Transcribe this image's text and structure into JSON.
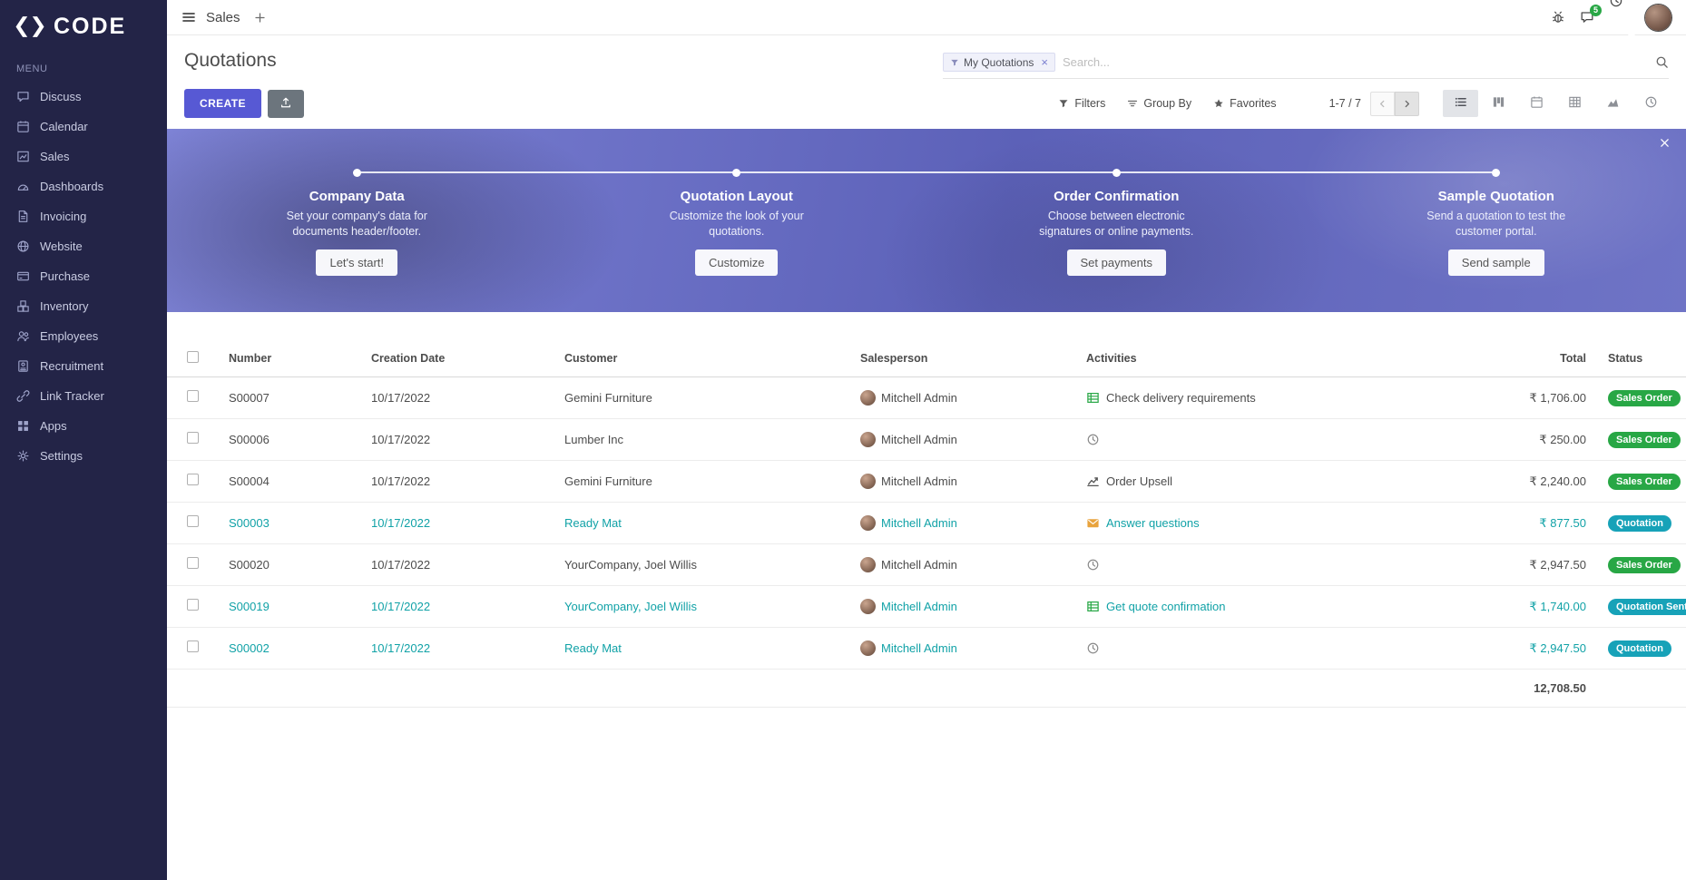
{
  "brand": {
    "name": "CODE"
  },
  "colors": {
    "sidebar_bg": "#232447",
    "accent": "#5759d4",
    "teal_text": "#11a2a7",
    "badge_green": "#28a745",
    "badge_teal": "#17a2b8",
    "banner_purple_from": "#7e83d6",
    "banner_purple_to": "#5c61b8"
  },
  "topbar": {
    "app_label": "Sales",
    "messages_badge": "5"
  },
  "sidebar": {
    "menu_label": "MENU",
    "items": [
      {
        "label": "Discuss",
        "icon": "discuss"
      },
      {
        "label": "Calendar",
        "icon": "calendar"
      },
      {
        "label": "Sales",
        "icon": "sales"
      },
      {
        "label": "Dashboards",
        "icon": "dashboards"
      },
      {
        "label": "Invoicing",
        "icon": "invoicing"
      },
      {
        "label": "Website",
        "icon": "website"
      },
      {
        "label": "Purchase",
        "icon": "purchase"
      },
      {
        "label": "Inventory",
        "icon": "inventory"
      },
      {
        "label": "Employees",
        "icon": "employees"
      },
      {
        "label": "Recruitment",
        "icon": "recruitment"
      },
      {
        "label": "Link Tracker",
        "icon": "link-tracker"
      },
      {
        "label": "Apps",
        "icon": "apps"
      },
      {
        "label": "Settings",
        "icon": "settings"
      }
    ]
  },
  "control": {
    "title": "Quotations",
    "search": {
      "facet_label": "My Quotations",
      "remove_label": "×",
      "placeholder": "Search..."
    },
    "create_label": "CREATE",
    "filters_label": "Filters",
    "groupby_label": "Group By",
    "favorites_label": "Favorites",
    "pager_text": "1-7 / 7",
    "view_switcher": [
      {
        "name": "list",
        "icon": "view-list",
        "active": true
      },
      {
        "name": "kanban",
        "icon": "view-kanban",
        "active": false
      },
      {
        "name": "calendar",
        "icon": "view-calendar",
        "active": false
      },
      {
        "name": "pivot",
        "icon": "view-pivot",
        "active": false
      },
      {
        "name": "graph",
        "icon": "view-graph",
        "active": false
      },
      {
        "name": "activity",
        "icon": "view-activity",
        "active": false
      }
    ]
  },
  "banner": {
    "steps": [
      {
        "title": "Company Data",
        "desc": "Set your company's data for documents header/footer.",
        "button": "Let's start!"
      },
      {
        "title": "Quotation Layout",
        "desc": "Customize the look of your quotations.",
        "button": "Customize"
      },
      {
        "title": "Order Confirmation",
        "desc": "Choose between electronic signatures or online payments.",
        "button": "Set payments"
      },
      {
        "title": "Sample Quotation",
        "desc": "Send a quotation to test the customer portal.",
        "button": "Send sample"
      }
    ]
  },
  "table": {
    "headers": {
      "number": "Number",
      "date": "Creation Date",
      "customer": "Customer",
      "salesperson": "Salesperson",
      "activities": "Activities",
      "total": "Total",
      "status": "Status"
    },
    "rows": [
      {
        "number": "S00007",
        "date": "10/17/2022",
        "customer": "Gemini Furniture",
        "salesperson": "Mitchell Admin",
        "activity": {
          "icon": "list-check",
          "label": "Check delivery requirements"
        },
        "total": "₹ 1,706.00",
        "status": {
          "label": "Sales Order",
          "type": "sales-order"
        },
        "tone": "default"
      },
      {
        "number": "S00006",
        "date": "10/17/2022",
        "customer": "Lumber Inc",
        "salesperson": "Mitchell Admin",
        "activity": {
          "icon": "clock",
          "label": ""
        },
        "total": "₹ 250.00",
        "status": {
          "label": "Sales Order",
          "type": "sales-order"
        },
        "tone": "default"
      },
      {
        "number": "S00004",
        "date": "10/17/2022",
        "customer": "Gemini Furniture",
        "salesperson": "Mitchell Admin",
        "activity": {
          "icon": "chart-line",
          "label": "Order Upsell"
        },
        "total": "₹ 2,240.00",
        "status": {
          "label": "Sales Order",
          "type": "sales-order"
        },
        "tone": "default"
      },
      {
        "number": "S00003",
        "date": "10/17/2022",
        "customer": "Ready Mat",
        "salesperson": "Mitchell Admin",
        "activity": {
          "icon": "envelope",
          "label": "Answer questions"
        },
        "total": "₹ 877.50",
        "status": {
          "label": "Quotation",
          "type": "quotation"
        },
        "tone": "teal"
      },
      {
        "number": "S00020",
        "date": "10/17/2022",
        "customer": "YourCompany, Joel Willis",
        "salesperson": "Mitchell Admin",
        "activity": {
          "icon": "clock",
          "label": ""
        },
        "total": "₹ 2,947.50",
        "status": {
          "label": "Sales Order",
          "type": "sales-order"
        },
        "tone": "default"
      },
      {
        "number": "S00019",
        "date": "10/17/2022",
        "customer": "YourCompany, Joel Willis",
        "salesperson": "Mitchell Admin",
        "activity": {
          "icon": "list-check",
          "label": "Get quote confirmation"
        },
        "total": "₹ 1,740.00",
        "status": {
          "label": "Quotation Sent",
          "type": "quotation-sent"
        },
        "tone": "teal"
      },
      {
        "number": "S00002",
        "date": "10/17/2022",
        "customer": "Ready Mat",
        "salesperson": "Mitchell Admin",
        "activity": {
          "icon": "clock",
          "label": ""
        },
        "total": "₹ 2,947.50",
        "status": {
          "label": "Quotation",
          "type": "quotation"
        },
        "tone": "teal"
      }
    ],
    "footer_total": "12,708.50"
  }
}
